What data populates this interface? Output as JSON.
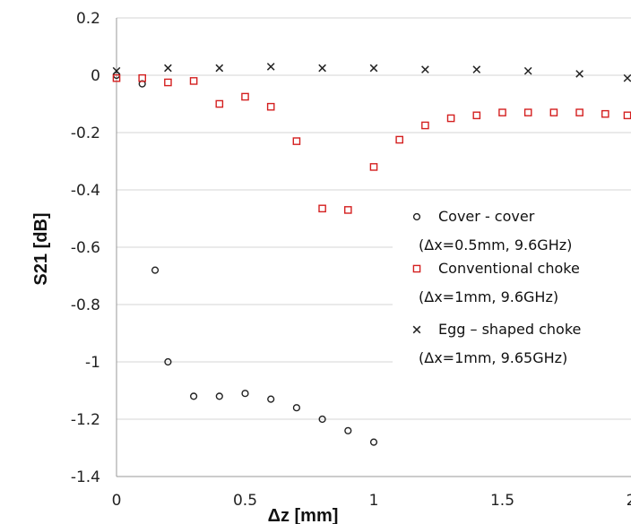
{
  "chart_data": {
    "type": "scatter",
    "title": "",
    "xlabel": "Δz [mm]",
    "ylabel": "S21 [dB]",
    "xlim": [
      0,
      2
    ],
    "ylim": [
      -1.4,
      0.2
    ],
    "x_ticks": [
      0,
      0.5,
      1,
      1.5,
      2
    ],
    "x_tick_labels": [
      "0",
      "0.5",
      "1",
      "1.5",
      "2"
    ],
    "y_ticks": [
      0.2,
      0,
      -0.2,
      -0.4,
      -0.6,
      -0.8,
      -1,
      -1.2,
      -1.4
    ],
    "y_tick_labels": [
      "0.2",
      "0",
      "-0.2",
      "-0.4",
      "-0.6",
      "-0.8",
      "-1",
      "-1.2",
      "-1.4"
    ],
    "grid": "horizontal",
    "legend_position": "right",
    "series": [
      {
        "name": "Cover - cover",
        "name_line2": "(Δx=0.5mm, 9.6GHz)",
        "marker": "circle",
        "color": "#222222",
        "x": [
          0,
          0.1,
          0.15,
          0.2,
          0.3,
          0.4,
          0.5,
          0.6,
          0.7,
          0.8,
          0.9,
          1.0
        ],
        "y": [
          0,
          -0.03,
          -0.68,
          -1.0,
          -1.12,
          -1.12,
          -1.11,
          -1.13,
          -1.16,
          -1.2,
          -1.24,
          -1.28
        ]
      },
      {
        "name": "Conventional choke",
        "name_line2": "(Δx=1mm, 9.6GHz)",
        "marker": "square",
        "color": "#d42020",
        "x": [
          0,
          0.1,
          0.2,
          0.3,
          0.4,
          0.5,
          0.6,
          0.7,
          0.8,
          0.9,
          1.0,
          1.1,
          1.2,
          1.3,
          1.4,
          1.5,
          1.6,
          1.7,
          1.8,
          1.9,
          2.0
        ],
        "y": [
          -0.01,
          -0.01,
          -0.025,
          -0.02,
          -0.1,
          -0.075,
          -0.11,
          -0.23,
          -0.465,
          -0.47,
          -0.32,
          -0.225,
          -0.175,
          -0.15,
          -0.14,
          -0.13,
          -0.13,
          -0.13,
          -0.13,
          -0.135,
          -0.14
        ]
      },
      {
        "name": "Egg – shaped choke",
        "name_line2": "(Δx=1mm, 9.65GHz)",
        "marker": "x",
        "color": "#222222",
        "x": [
          0,
          0.2,
          0.4,
          0.6,
          0.8,
          1.0,
          1.2,
          1.4,
          1.6,
          1.8,
          2.0
        ],
        "y": [
          0.015,
          0.025,
          0.025,
          0.03,
          0.025,
          0.025,
          0.02,
          0.02,
          0.015,
          0.005,
          -0.01
        ]
      }
    ]
  }
}
